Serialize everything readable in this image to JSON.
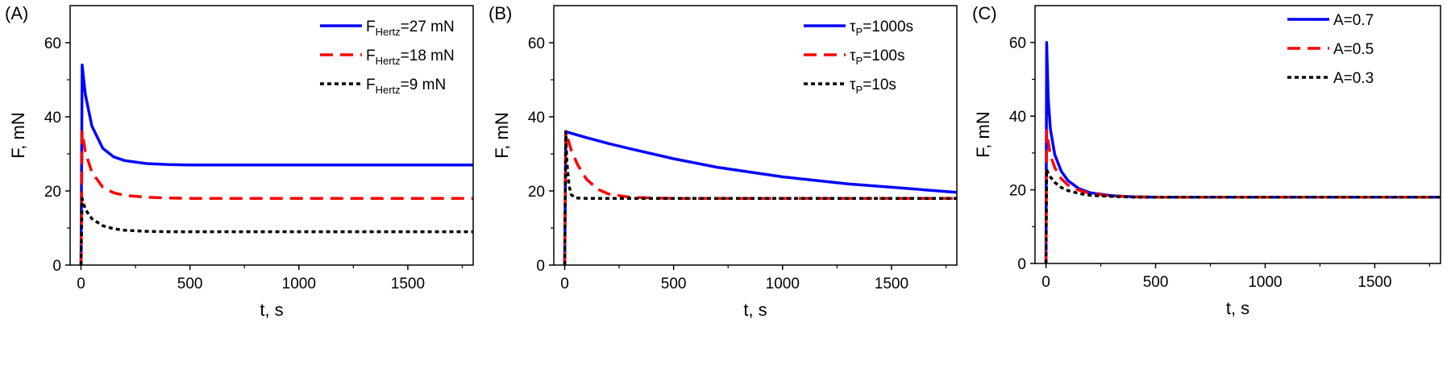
{
  "chart_data": [
    {
      "panel_label": "(A)",
      "type": "line",
      "xlabel": "t, s",
      "ylabel": "F, mN",
      "xlim": [
        -50,
        1800
      ],
      "ylim": [
        0,
        70
      ],
      "xticks": [
        0,
        500,
        1000,
        1500
      ],
      "yticks": [
        0,
        20,
        40,
        60
      ],
      "legend_position": "top-right",
      "series": [
        {
          "name_main": "F",
          "name_sub": "Hertz",
          "name_rest": "=27 mN",
          "color": "#0000ff",
          "dash": "solid",
          "x": [
            0,
            5,
            20,
            50,
            100,
            150,
            200,
            300,
            400,
            500,
            1000,
            1500,
            1800
          ],
          "y": [
            0,
            54,
            46,
            37.5,
            31.5,
            29.2,
            28.2,
            27.4,
            27.1,
            27,
            27,
            27,
            27
          ]
        },
        {
          "name_main": "F",
          "name_sub": "Hertz",
          "name_rest": "=18 mN",
          "color": "#ff0000",
          "dash": "dashed",
          "x": [
            0,
            5,
            20,
            50,
            100,
            150,
            200,
            300,
            400,
            500,
            1000,
            1500,
            1800
          ],
          "y": [
            0,
            36,
            30.5,
            25,
            21,
            19.5,
            18.8,
            18.3,
            18.1,
            18,
            18,
            18,
            18
          ]
        },
        {
          "name_main": "F",
          "name_sub": "Hertz",
          "name_rest": "=9 mN",
          "color": "#000000",
          "dash": "dotted",
          "x": [
            0,
            5,
            20,
            50,
            100,
            150,
            200,
            300,
            400,
            500,
            1000,
            1500,
            1800
          ],
          "y": [
            0,
            18,
            15,
            12.5,
            10.6,
            9.8,
            9.4,
            9.1,
            9,
            9,
            9,
            9,
            9
          ]
        }
      ]
    },
    {
      "panel_label": "(B)",
      "type": "line",
      "xlabel": "t, s",
      "ylabel": "F, mN",
      "xlim": [
        -50,
        1800
      ],
      "ylim": [
        0,
        70
      ],
      "xticks": [
        0,
        500,
        1000,
        1500
      ],
      "yticks": [
        0,
        20,
        40,
        60
      ],
      "legend_position": "top-right",
      "series": [
        {
          "name_main": "τ",
          "name_sub": "P",
          "name_rest": "=1000s",
          "color": "#0000ff",
          "dash": "solid",
          "x": [
            0,
            5,
            100,
            200,
            300,
            500,
            700,
            1000,
            1300,
            1500,
            1800
          ],
          "y": [
            0,
            36,
            34.4,
            32.8,
            31.4,
            28.7,
            26.4,
            23.8,
            21.9,
            21,
            19.6
          ]
        },
        {
          "name_main": "τ",
          "name_sub": "P",
          "name_rest": "=100s",
          "color": "#ff0000",
          "dash": "dashed",
          "x": [
            0,
            5,
            30,
            60,
            100,
            150,
            200,
            300,
            400,
            500,
            1000,
            1800
          ],
          "y": [
            0,
            36,
            31,
            27,
            23.2,
            20.5,
            19.2,
            18.3,
            18.1,
            18,
            18,
            18
          ]
        },
        {
          "name_main": "τ",
          "name_sub": "P",
          "name_rest": "=10s",
          "color": "#000000",
          "dash": "dotted",
          "x": [
            0,
            5,
            10,
            20,
            30,
            50,
            100,
            500,
            1000,
            1800
          ],
          "y": [
            0,
            36,
            28,
            21.5,
            19,
            18.1,
            18,
            18,
            18,
            18
          ]
        }
      ]
    },
    {
      "panel_label": "(C)",
      "type": "line",
      "xlabel": "t, s",
      "ylabel": "F, mN",
      "xlim": [
        -50,
        1800
      ],
      "ylim": [
        0,
        70
      ],
      "xticks": [
        0,
        500,
        1000,
        1500
      ],
      "yticks": [
        0,
        20,
        40,
        60
      ],
      "legend_position": "top-right",
      "series": [
        {
          "name_main": "A=0.7",
          "name_sub": "",
          "name_rest": "",
          "color": "#0000ff",
          "dash": "solid",
          "x": [
            0,
            3,
            10,
            20,
            40,
            70,
            100,
            150,
            200,
            300,
            400,
            500,
            1000,
            1800
          ],
          "y": [
            0,
            60,
            45,
            36.5,
            29.5,
            25,
            22.5,
            20.3,
            19.2,
            18.4,
            18.1,
            18,
            18,
            18
          ]
        },
        {
          "name_main": "A=0.5",
          "name_sub": "",
          "name_rest": "",
          "color": "#ff0000",
          "dash": "dashed",
          "x": [
            0,
            3,
            10,
            20,
            40,
            70,
            100,
            150,
            200,
            300,
            400,
            500,
            1000,
            1800
          ],
          "y": [
            0,
            36,
            33,
            29.5,
            26,
            23,
            21.3,
            19.9,
            19,
            18.3,
            18.1,
            18,
            18,
            18
          ]
        },
        {
          "name_main": "A=0.3",
          "name_sub": "",
          "name_rest": "",
          "color": "#000000",
          "dash": "dotted",
          "x": [
            0,
            3,
            10,
            20,
            40,
            70,
            100,
            150,
            200,
            300,
            400,
            500,
            1000,
            1800
          ],
          "y": [
            0,
            25.5,
            24.5,
            23.5,
            22,
            20.6,
            19.8,
            19,
            18.5,
            18.2,
            18,
            18,
            18,
            18
          ]
        }
      ]
    }
  ]
}
